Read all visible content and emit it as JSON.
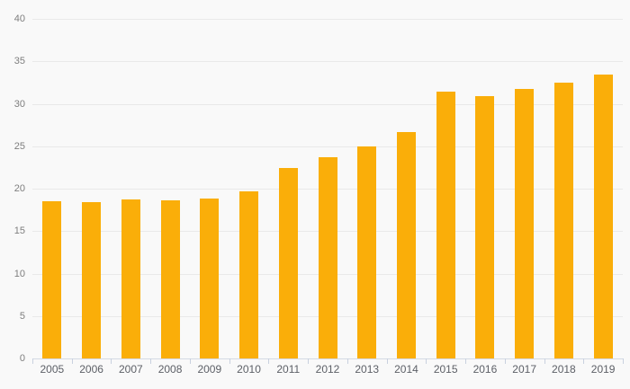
{
  "chart_data": {
    "type": "bar",
    "title": "",
    "xlabel": "",
    "ylabel": "",
    "categories": [
      "2005",
      "2006",
      "2007",
      "2008",
      "2009",
      "2010",
      "2011",
      "2012",
      "2013",
      "2014",
      "2015",
      "2016",
      "2017",
      "2018",
      "2019"
    ],
    "values": [
      18.5,
      18.4,
      18.7,
      18.6,
      18.8,
      19.7,
      22.4,
      23.7,
      25.0,
      26.7,
      31.4,
      30.9,
      31.7,
      32.5,
      33.4
    ],
    "yticks": [
      0,
      5,
      10,
      15,
      20,
      25,
      30,
      35,
      40
    ],
    "ylim": [
      0,
      40
    ],
    "grid": true,
    "legend": false,
    "bar_color": "#FAAE09",
    "background_color": "#F9F9F9",
    "gridline_color": "#E9E9E9",
    "axis_line_color": "#D4DAE4",
    "tick_mark_color": "#C9D1DF",
    "y_label_color": "#7E7E7E",
    "x_label_color": "#5D6067"
  }
}
